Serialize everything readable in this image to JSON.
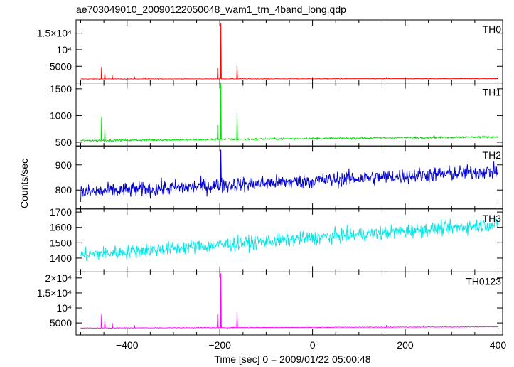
{
  "title": "ae703049010_20090122050048_wam1_trn_4band_long.qdp",
  "xlabel": "Time [sec] 0 = 2009/01/22 05:00:48",
  "ylabel": "Counts/sec",
  "chart_data": {
    "type": "line",
    "xlim": [
      -510,
      410
    ],
    "x_ticks": [
      "−400",
      "−200",
      "0",
      "200",
      "400"
    ],
    "x_tick_values": [
      -400,
      -200,
      0,
      200,
      400
    ],
    "panels": [
      {
        "name": "TH0",
        "color": "#ff0000",
        "ylim": [
          0,
          19000
        ],
        "tick_labels": [
          "5000",
          "10⁴",
          "1.5×10⁴"
        ],
        "tick_values": [
          5000,
          10000,
          15000
        ],
        "baseline": [
          1200,
          1300
        ],
        "noise": 80,
        "spikes": [
          [
            -455,
            4800
          ],
          [
            -448,
            3200
          ],
          [
            -432,
            2300
          ],
          [
            -384,
            1700
          ],
          [
            -360,
            1500
          ],
          [
            -205,
            4600
          ],
          [
            -198,
            18000
          ],
          [
            -163,
            5100
          ],
          [
            160,
            1600
          ],
          [
            165,
            1500
          ],
          [
            240,
            1400
          ],
          [
            322,
            1450
          ]
        ]
      },
      {
        "name": "TH1",
        "color": "#00e000",
        "ylim": [
          430,
          1610
        ],
        "tick_labels": [
          "500",
          "1000",
          "1500"
        ],
        "tick_values": [
          500,
          1000,
          1500
        ],
        "baseline": [
          530,
          600
        ],
        "noise": 18,
        "spikes": [
          [
            -455,
            980
          ],
          [
            -448,
            760
          ],
          [
            -205,
            820
          ],
          [
            -198,
            1600
          ],
          [
            -163,
            1050
          ]
        ]
      },
      {
        "name": "TH2",
        "color": "#0000d0",
        "ylim": [
          725,
          975
        ],
        "tick_labels": [
          "800",
          "900"
        ],
        "tick_values": [
          800,
          900
        ],
        "baseline": [
          790,
          875
        ],
        "noise": 30,
        "spikes": [
          [
            -198,
            960
          ]
        ]
      },
      {
        "name": "TH3",
        "color": "#00e8e8",
        "ylim": [
          1310,
          1720
        ],
        "tick_labels": [
          "1400",
          "1500",
          "1600",
          "1700"
        ],
        "tick_values": [
          1400,
          1500,
          1600,
          1700
        ],
        "baseline": [
          1420,
          1620
        ],
        "noise": 45,
        "spikes": []
      },
      {
        "name": "TH0123",
        "color": "#ff00ff",
        "ylim": [
          1000,
          22000
        ],
        "tick_labels": [
          "5000",
          "10⁴",
          "1.5×10⁴",
          "2×10⁴"
        ],
        "tick_values": [
          5000,
          10000,
          15000,
          20000
        ],
        "baseline": [
          3300,
          3700
        ],
        "noise": 110,
        "spikes": [
          [
            -455,
            8000
          ],
          [
            -448,
            6200
          ],
          [
            -432,
            5000
          ],
          [
            -384,
            4200
          ],
          [
            -205,
            7800
          ],
          [
            -198,
            21500
          ],
          [
            -163,
            8400
          ],
          [
            160,
            4300
          ],
          [
            240,
            4000
          ]
        ]
      }
    ]
  }
}
